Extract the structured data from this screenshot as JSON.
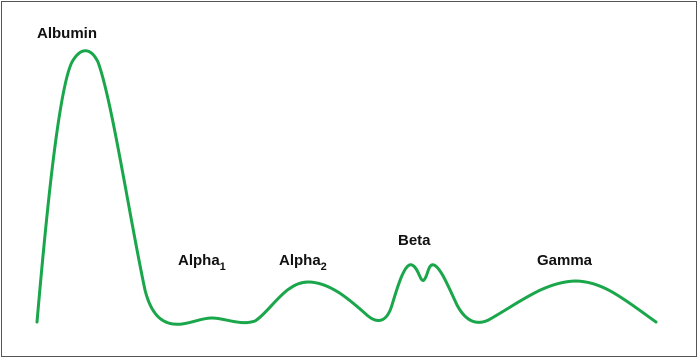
{
  "chart_data": {
    "type": "line",
    "title": "",
    "xlabel": "",
    "ylabel": "",
    "line_color": "#1aa64a",
    "peaks": [
      {
        "label": "Albumin",
        "sub": ""
      },
      {
        "label": "Alpha",
        "sub": "1"
      },
      {
        "label": "Alpha",
        "sub": "2"
      },
      {
        "label": "Beta",
        "sub": ""
      },
      {
        "label": "Gamma",
        "sub": ""
      }
    ]
  }
}
